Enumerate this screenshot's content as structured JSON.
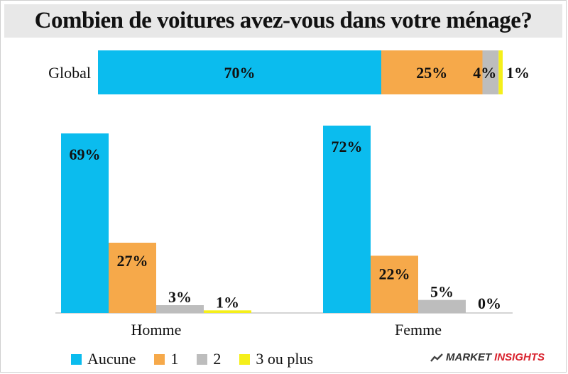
{
  "title": "Combien de voitures avez-vous dans votre ménage?",
  "colors": {
    "aucune": "#0bbcee",
    "un": "#f6a94a",
    "deux": "#bdbdbd",
    "trois": "#f5ef1a"
  },
  "chart_data": [
    {
      "type": "bar",
      "orientation": "horizontal-stacked",
      "categories": [
        "Global"
      ],
      "series": [
        {
          "name": "Aucune",
          "values": [
            70
          ],
          "label": "70%"
        },
        {
          "name": "1",
          "values": [
            25
          ],
          "label": "25%"
        },
        {
          "name": "2",
          "values": [
            4
          ],
          "label": "4%"
        },
        {
          "name": "3 ou plus",
          "values": [
            1
          ],
          "label": "1%"
        }
      ],
      "xlim": [
        0,
        100
      ]
    },
    {
      "type": "bar",
      "categories": [
        "Homme",
        "Femme"
      ],
      "series": [
        {
          "name": "Aucune",
          "values": [
            69,
            72
          ],
          "labels": [
            "69%",
            "72%"
          ]
        },
        {
          "name": "1",
          "values": [
            27,
            22
          ],
          "labels": [
            "27%",
            "22%"
          ]
        },
        {
          "name": "2",
          "values": [
            3,
            5
          ],
          "labels": [
            "3%",
            "5%"
          ]
        },
        {
          "name": "3 ou plus",
          "values": [
            1,
            0
          ],
          "labels": [
            "1%",
            "0%"
          ]
        }
      ],
      "ylim": [
        0,
        72
      ]
    }
  ],
  "legend": [
    {
      "label": "Aucune",
      "color": "#0bbcee"
    },
    {
      "label": "1",
      "color": "#f6a94a"
    },
    {
      "label": "2",
      "color": "#bdbdbd"
    },
    {
      "label": "3 ou plus",
      "color": "#f5ef1a"
    }
  ],
  "brand": {
    "part1": "MARKET",
    "part2": "INSIGHTS"
  }
}
